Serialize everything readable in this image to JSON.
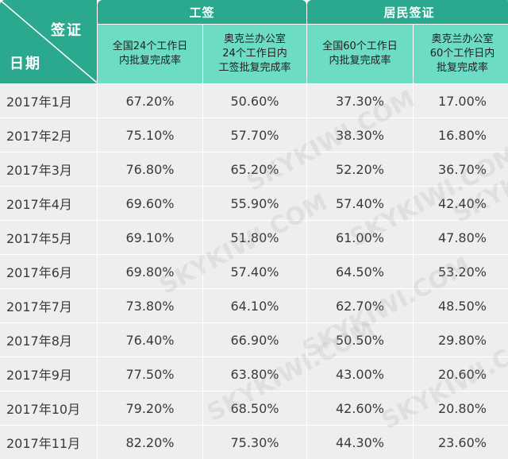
{
  "header": {
    "corner_top": "签证",
    "corner_bottom": "日期",
    "group_work": "工签",
    "group_resident": "居民签证",
    "subheaders": [
      "全国24个工作日\n内批复完成率",
      "奥克兰办公室\n24个工作日内\n工签批复完成率",
      "全国60个工作日\n内批复完成率",
      "奥克兰办公室\n60个工作日内\n批复完成率"
    ]
  },
  "rows": [
    {
      "date": "2017年1月",
      "values": [
        "67.20%",
        "50.60%",
        "37.30%",
        "17.00%"
      ]
    },
    {
      "date": "2017年2月",
      "values": [
        "75.10%",
        "57.70%",
        "38.30%",
        "16.80%"
      ]
    },
    {
      "date": "2017年3月",
      "values": [
        "76.80%",
        "65.20%",
        "52.20%",
        "36.70%"
      ]
    },
    {
      "date": "2017年4月",
      "values": [
        "69.60%",
        "55.90%",
        "57.40%",
        "42.40%"
      ]
    },
    {
      "date": "2017年5月",
      "values": [
        "69.10%",
        "51.80%",
        "61.00%",
        "47.80%"
      ]
    },
    {
      "date": "2017年6月",
      "values": [
        "69.80%",
        "57.40%",
        "64.50%",
        "53.20%"
      ]
    },
    {
      "date": "2017年7月",
      "values": [
        "73.80%",
        "64.10%",
        "62.70%",
        "48.50%"
      ]
    },
    {
      "date": "2017年8月",
      "values": [
        "76.40%",
        "66.90%",
        "50.50%",
        "29.80%"
      ]
    },
    {
      "date": "2017年9月",
      "values": [
        "77.50%",
        "63.80%",
        "43.00%",
        "20.60%"
      ]
    },
    {
      "date": "2017年10月",
      "values": [
        "79.20%",
        "68.50%",
        "42.60%",
        "20.80%"
      ]
    },
    {
      "date": "2017年11月",
      "values": [
        "82.20%",
        "75.30%",
        "44.30%",
        "23.60%"
      ]
    }
  ],
  "watermark": "SKYKIWI.COM",
  "colors": {
    "header_dark": "#2aa98e",
    "header_light": "#6ddcc4",
    "row_bg": "#eeeeee"
  }
}
